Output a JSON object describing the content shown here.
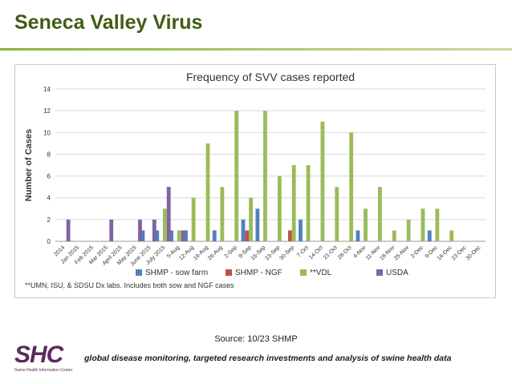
{
  "slide": {
    "title": "Seneca Valley Virus",
    "source": "Source:  10/23 SHMP",
    "tagline": "global disease monitoring, targeted research investments and analysis of swine health data",
    "logo": {
      "letters": "SHC",
      "subtitle": "Swine Health Information Center"
    }
  },
  "chart_data": {
    "type": "bar",
    "title": "Frequency of SVV cases reported",
    "xlabel": "",
    "ylabel": "Number of Cases",
    "ylim": [
      0,
      14
    ],
    "yticks": [
      0,
      2,
      4,
      6,
      8,
      10,
      12,
      14
    ],
    "grid": true,
    "categories": [
      "2014",
      "Jan 2015",
      "Feb 2015",
      "Mar 2015",
      "April 2015",
      "May 2015",
      "June 2015",
      "July 2015",
      "5-Aug",
      "12-Aug",
      "19-Aug",
      "26-Aug",
      "2-Sep",
      "9-Sep",
      "16-Sep",
      "23-Sep",
      "30-Sep",
      "7-Oct",
      "14-Oct",
      "21-Oct",
      "28-Oct",
      "4-Nov",
      "11-Nov",
      "18-Nov",
      "25-Nov",
      "2-Dec",
      "9-Dec",
      "16-Dec",
      "23-Dec",
      "30-Dec"
    ],
    "series": [
      {
        "name": "SHMP - sow farm",
        "color": "#4f81bd",
        "values": [
          0,
          0,
          0,
          0,
          0,
          0,
          1,
          1,
          1,
          1,
          0,
          1,
          0,
          2,
          3,
          0,
          0,
          2,
          0,
          0,
          0,
          1,
          0,
          0,
          0,
          0,
          1,
          0,
          0,
          0
        ]
      },
      {
        "name": "SHMP - NGF",
        "color": "#c0504d",
        "values": [
          0,
          0,
          0,
          0,
          0,
          0,
          0,
          0,
          0,
          0,
          0,
          0,
          0,
          1,
          0,
          0,
          1,
          0,
          0,
          0,
          0,
          0,
          0,
          0,
          0,
          0,
          0,
          0,
          0,
          0
        ]
      },
      {
        "name": "**VDL",
        "color": "#9bbb59",
        "values": [
          0,
          0,
          0,
          0,
          0,
          0,
          0,
          3,
          1,
          4,
          9,
          5,
          12,
          4,
          12,
          6,
          7,
          7,
          11,
          5,
          10,
          3,
          5,
          1,
          2,
          3,
          3,
          1,
          0,
          0
        ]
      },
      {
        "name": "USDA",
        "color": "#8064a2",
        "values": [
          2,
          0,
          0,
          2,
          0,
          2,
          2,
          5,
          1,
          0,
          0,
          0,
          0,
          0,
          0,
          0,
          0,
          0,
          0,
          0,
          0,
          0,
          0,
          0,
          0,
          0,
          0,
          0,
          0,
          0
        ]
      }
    ],
    "legend_position": "bottom",
    "footnote": "**UMN, ISU, & SDSU Dx labs. Includes both sow and NGF cases"
  }
}
